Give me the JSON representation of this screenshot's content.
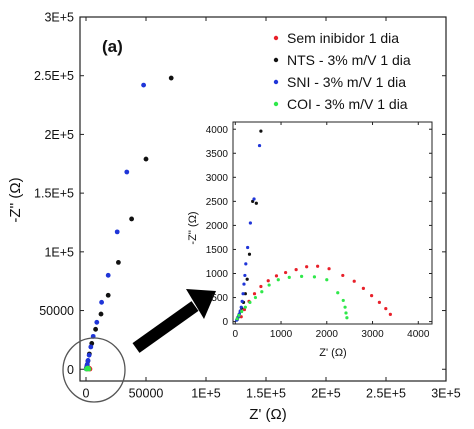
{
  "panel_label": "(a)",
  "colors": {
    "sem": "#e8202a",
    "nts": "#111111",
    "sni": "#1f35d8",
    "coi": "#2fe84a",
    "frame": "#222222",
    "arrow": "#000000",
    "circle": "#444444"
  },
  "chart_data": [
    {
      "type": "scatter",
      "id": "main",
      "xlabel": "Z' (Ω)",
      "ylabel": "-Z'' (Ω)",
      "xlim": [
        -5000,
        300000
      ],
      "ylim": [
        -10000,
        300000
      ],
      "xticks": [
        0,
        50000,
        100000,
        150000,
        200000,
        250000,
        300000
      ],
      "xtick_labels": [
        "0",
        "50000",
        "1E+5",
        "1.5E+5",
        "2E+5",
        "2.5E+5",
        "3E+5"
      ],
      "yticks": [
        0,
        50000,
        100000,
        150000,
        200000,
        250000,
        300000
      ],
      "ytick_labels": [
        "0",
        "50000",
        "1E+5",
        "1.5E+5",
        "2E+5",
        "2.5E+5",
        "3E+5"
      ],
      "legend_position": "top-right",
      "series": [
        {
          "name": "Sem inibidor 1 dia",
          "color_key": "sem",
          "x": [
            1200,
            1500,
            1800,
            2100,
            2400,
            2700,
            3000,
            3300
          ],
          "y": [
            200,
            600,
            900,
            1100,
            1000,
            800,
            500,
            200
          ]
        },
        {
          "name": "NTS - 3% m/V 1 dia",
          "color_key": "nts",
          "x": [
            300,
            500,
            900,
            1600,
            2800,
            4800,
            8000,
            12500,
            18500,
            27000,
            38000,
            50000,
            71000
          ],
          "y": [
            500,
            1500,
            3500,
            7000,
            13000,
            22000,
            34000,
            47000,
            63000,
            91000,
            128000,
            179000,
            248000
          ]
        },
        {
          "name": "SNI - 3% m/V 1 dia",
          "color_key": "sni",
          "x": [
            200,
            400,
            700,
            1100,
            1700,
            2600,
            4000,
            6000,
            9000,
            13000,
            18500,
            26000,
            34000,
            48000
          ],
          "y": [
            300,
            1000,
            2200,
            4300,
            7500,
            12000,
            19000,
            28000,
            40000,
            57000,
            80000,
            117000,
            168000,
            242000
          ]
        },
        {
          "name": "COI - 3% m/V 1 dia",
          "color_key": "coi",
          "x": [
            400,
            600,
            900,
            1200,
            1500,
            1800,
            2100,
            2400
          ],
          "y": [
            200,
            500,
            700,
            900,
            900,
            850,
            600,
            200
          ]
        }
      ]
    },
    {
      "type": "scatter",
      "id": "inset",
      "xlabel": "Z' (Ω)",
      "ylabel": "-Z'' (Ω)",
      "xlim": [
        -50,
        4300
      ],
      "ylim": [
        -50,
        4150
      ],
      "xticks": [
        0,
        1000,
        2000,
        3000,
        4000
      ],
      "xtick_labels": [
        "0",
        "1000",
        "2000",
        "3000",
        "4000"
      ],
      "yticks": [
        0,
        500,
        1000,
        1500,
        2000,
        2500,
        3000,
        3500,
        4000
      ],
      "ytick_labels": [
        "0",
        "500",
        "1000",
        "1500",
        "2000",
        "2500",
        "3000",
        "3500",
        "4000"
      ],
      "series": [
        {
          "name": "Sem inibidor 1 dia",
          "color_key": "sem",
          "x": [
            130,
            200,
            300,
            420,
            560,
            720,
            900,
            1100,
            1330,
            1560,
            1800,
            2050,
            2350,
            2600,
            2800,
            2980,
            3150,
            3290,
            3390
          ],
          "y": [
            100,
            250,
            420,
            580,
            730,
            850,
            950,
            1020,
            1080,
            1140,
            1150,
            1100,
            960,
            840,
            690,
            540,
            400,
            270,
            150
          ]
        },
        {
          "name": "NTS - 3% m/V 1 dia",
          "color_key": "nts",
          "x": [
            40,
            60,
            80,
            110,
            140,
            180,
            220,
            260,
            310,
            380,
            460,
            560
          ],
          "y": [
            40,
            90,
            140,
            210,
            280,
            400,
            580,
            880,
            1400,
            2500,
            2460,
            3960
          ]
        },
        {
          "name": "SNI - 3% m/V 1 dia",
          "color_key": "sni",
          "x": [
            30,
            50,
            70,
            90,
            110,
            130,
            150,
            170,
            190,
            210,
            230,
            270,
            330,
            410,
            530
          ],
          "y": [
            30,
            70,
            110,
            160,
            220,
            300,
            420,
            580,
            780,
            960,
            1200,
            1540,
            2050,
            2550,
            3660
          ]
        },
        {
          "name": "COI - 3% m/V 1 dia",
          "color_key": "coi",
          "x": [
            40,
            80,
            140,
            220,
            320,
            440,
            580,
            740,
            940,
            1180,
            1450,
            1730,
            2000,
            2240,
            2360,
            2400,
            2420,
            2440
          ],
          "y": [
            60,
            130,
            210,
            300,
            400,
            500,
            620,
            760,
            870,
            920,
            940,
            930,
            870,
            600,
            440,
            300,
            180,
            80
          ]
        }
      ]
    }
  ]
}
